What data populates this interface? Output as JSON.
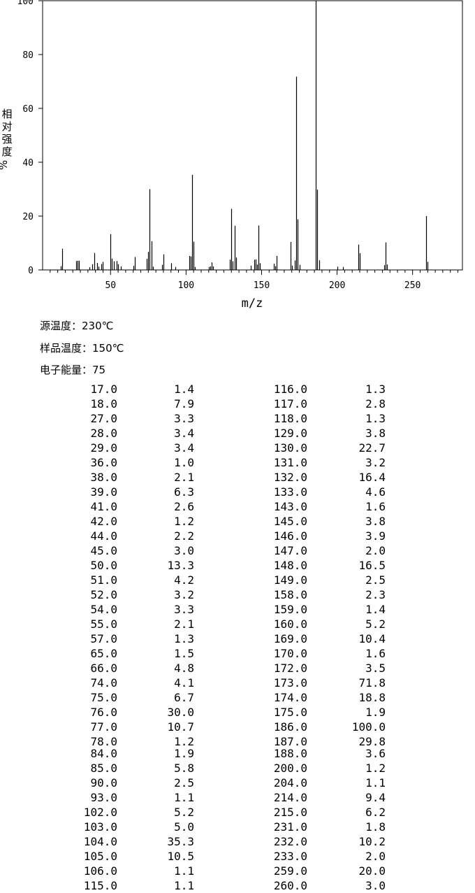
{
  "chart_data": {
    "type": "bar",
    "subtype": "mass-spectrum",
    "xlabel": "m/z",
    "ylabel": "相对强度 %",
    "xlim": [
      5,
      283
    ],
    "ylim": [
      0,
      100
    ],
    "x_ticks": [
      50,
      100,
      150,
      200,
      250
    ],
    "y_ticks": [
      0,
      20,
      40,
      60,
      80,
      100
    ],
    "grid": false,
    "points": [
      {
        "mz": 17,
        "intensity": 1.4
      },
      {
        "mz": 18,
        "intensity": 7.9
      },
      {
        "mz": 27,
        "intensity": 3.3
      },
      {
        "mz": 28,
        "intensity": 3.4
      },
      {
        "mz": 29,
        "intensity": 3.4
      },
      {
        "mz": 36,
        "intensity": 1.0
      },
      {
        "mz": 38,
        "intensity": 2.1
      },
      {
        "mz": 39,
        "intensity": 6.3
      },
      {
        "mz": 41,
        "intensity": 2.6
      },
      {
        "mz": 42,
        "intensity": 1.2
      },
      {
        "mz": 44,
        "intensity": 2.2
      },
      {
        "mz": 45,
        "intensity": 3.0
      },
      {
        "mz": 50,
        "intensity": 13.3
      },
      {
        "mz": 51,
        "intensity": 4.2
      },
      {
        "mz": 52,
        "intensity": 3.2
      },
      {
        "mz": 54,
        "intensity": 3.3
      },
      {
        "mz": 55,
        "intensity": 2.1
      },
      {
        "mz": 57,
        "intensity": 1.3
      },
      {
        "mz": 65,
        "intensity": 1.5
      },
      {
        "mz": 66,
        "intensity": 4.8
      },
      {
        "mz": 74,
        "intensity": 4.1
      },
      {
        "mz": 75,
        "intensity": 6.7
      },
      {
        "mz": 76,
        "intensity": 30.0
      },
      {
        "mz": 77,
        "intensity": 10.7
      },
      {
        "mz": 78,
        "intensity": 1.2
      },
      {
        "mz": 84,
        "intensity": 1.9
      },
      {
        "mz": 85,
        "intensity": 5.8
      },
      {
        "mz": 90,
        "intensity": 2.5
      },
      {
        "mz": 93,
        "intensity": 1.1
      },
      {
        "mz": 102,
        "intensity": 5.2
      },
      {
        "mz": 103,
        "intensity": 5.0
      },
      {
        "mz": 104,
        "intensity": 35.3
      },
      {
        "mz": 105,
        "intensity": 10.5
      },
      {
        "mz": 106,
        "intensity": 1.1
      },
      {
        "mz": 115,
        "intensity": 1.1
      },
      {
        "mz": 116,
        "intensity": 1.3
      },
      {
        "mz": 117,
        "intensity": 2.8
      },
      {
        "mz": 118,
        "intensity": 1.3
      },
      {
        "mz": 129,
        "intensity": 3.8
      },
      {
        "mz": 130,
        "intensity": 22.7
      },
      {
        "mz": 131,
        "intensity": 3.2
      },
      {
        "mz": 132,
        "intensity": 16.4
      },
      {
        "mz": 133,
        "intensity": 4.6
      },
      {
        "mz": 143,
        "intensity": 1.6
      },
      {
        "mz": 145,
        "intensity": 3.8
      },
      {
        "mz": 146,
        "intensity": 3.9
      },
      {
        "mz": 147,
        "intensity": 2.0
      },
      {
        "mz": 148,
        "intensity": 16.5
      },
      {
        "mz": 149,
        "intensity": 2.5
      },
      {
        "mz": 158,
        "intensity": 2.3
      },
      {
        "mz": 159,
        "intensity": 1.4
      },
      {
        "mz": 160,
        "intensity": 5.2
      },
      {
        "mz": 169,
        "intensity": 10.4
      },
      {
        "mz": 170,
        "intensity": 1.6
      },
      {
        "mz": 172,
        "intensity": 3.5
      },
      {
        "mz": 173,
        "intensity": 71.8
      },
      {
        "mz": 174,
        "intensity": 18.8
      },
      {
        "mz": 175,
        "intensity": 1.9
      },
      {
        "mz": 186,
        "intensity": 100.0
      },
      {
        "mz": 187,
        "intensity": 29.8
      },
      {
        "mz": 188,
        "intensity": 3.6
      },
      {
        "mz": 200,
        "intensity": 1.2
      },
      {
        "mz": 204,
        "intensity": 1.1
      },
      {
        "mz": 214,
        "intensity": 9.4
      },
      {
        "mz": 215,
        "intensity": 6.2
      },
      {
        "mz": 231,
        "intensity": 1.8
      },
      {
        "mz": 232,
        "intensity": 10.2
      },
      {
        "mz": 233,
        "intensity": 2.0
      },
      {
        "mz": 259,
        "intensity": 20.0
      },
      {
        "mz": 260,
        "intensity": 3.0
      }
    ]
  },
  "conditions": {
    "source_temp": "源温度：230℃",
    "sample_temp": "样品温度：150℃",
    "electron_energy": "电子能量：75"
  },
  "peak_table": {
    "left": [
      [
        "17.0",
        "1.4"
      ],
      [
        "18.0",
        "7.9"
      ],
      [
        "27.0",
        "3.3"
      ],
      [
        "28.0",
        "3.4"
      ],
      [
        "29.0",
        "3.4"
      ],
      [
        "36.0",
        "1.0"
      ],
      [
        "38.0",
        "2.1"
      ],
      [
        "39.0",
        "6.3"
      ],
      [
        "41.0",
        "2.6"
      ],
      [
        "42.0",
        "1.2"
      ],
      [
        "44.0",
        "2.2"
      ],
      [
        "45.0",
        "3.0"
      ],
      [
        "50.0",
        "13.3"
      ],
      [
        "51.0",
        "4.2"
      ],
      [
        "52.0",
        "3.2"
      ],
      [
        "54.0",
        "3.3"
      ],
      [
        "55.0",
        "2.1"
      ],
      [
        "57.0",
        "1.3"
      ],
      [
        "65.0",
        "1.5"
      ],
      [
        "66.0",
        "4.8"
      ],
      [
        "74.0",
        "4.1"
      ],
      [
        "75.0",
        "6.7"
      ],
      [
        "76.0",
        "30.0"
      ],
      [
        "77.0",
        "10.7"
      ],
      [
        "78.0",
        "1.2"
      ],
      [
        "84.0",
        "1.9"
      ],
      [
        "85.0",
        "5.8"
      ],
      [
        "90.0",
        "2.5"
      ],
      [
        "93.0",
        "1.1"
      ],
      [
        "102.0",
        "5.2"
      ],
      [
        "103.0",
        "5.0"
      ],
      [
        "104.0",
        "35.3"
      ],
      [
        "105.0",
        "10.5"
      ],
      [
        "106.0",
        "1.1"
      ],
      [
        "115.0",
        "1.1"
      ]
    ],
    "right": [
      [
        "116.0",
        "1.3"
      ],
      [
        "117.0",
        "2.8"
      ],
      [
        "118.0",
        "1.3"
      ],
      [
        "129.0",
        "3.8"
      ],
      [
        "130.0",
        "22.7"
      ],
      [
        "131.0",
        "3.2"
      ],
      [
        "132.0",
        "16.4"
      ],
      [
        "133.0",
        "4.6"
      ],
      [
        "143.0",
        "1.6"
      ],
      [
        "145.0",
        "3.8"
      ],
      [
        "146.0",
        "3.9"
      ],
      [
        "147.0",
        "2.0"
      ],
      [
        "148.0",
        "16.5"
      ],
      [
        "149.0",
        "2.5"
      ],
      [
        "158.0",
        "2.3"
      ],
      [
        "159.0",
        "1.4"
      ],
      [
        "160.0",
        "5.2"
      ],
      [
        "169.0",
        "10.4"
      ],
      [
        "170.0",
        "1.6"
      ],
      [
        "172.0",
        "3.5"
      ],
      [
        "173.0",
        "71.8"
      ],
      [
        "174.0",
        "18.8"
      ],
      [
        "175.0",
        "1.9"
      ],
      [
        "186.0",
        "100.0"
      ],
      [
        "187.0",
        "29.8"
      ],
      [
        "188.0",
        "3.6"
      ],
      [
        "200.0",
        "1.2"
      ],
      [
        "204.0",
        "1.1"
      ],
      [
        "214.0",
        "9.4"
      ],
      [
        "215.0",
        "6.2"
      ],
      [
        "231.0",
        "1.8"
      ],
      [
        "232.0",
        "10.2"
      ],
      [
        "233.0",
        "2.0"
      ],
      [
        "259.0",
        "20.0"
      ],
      [
        "260.0",
        "3.0"
      ]
    ]
  }
}
